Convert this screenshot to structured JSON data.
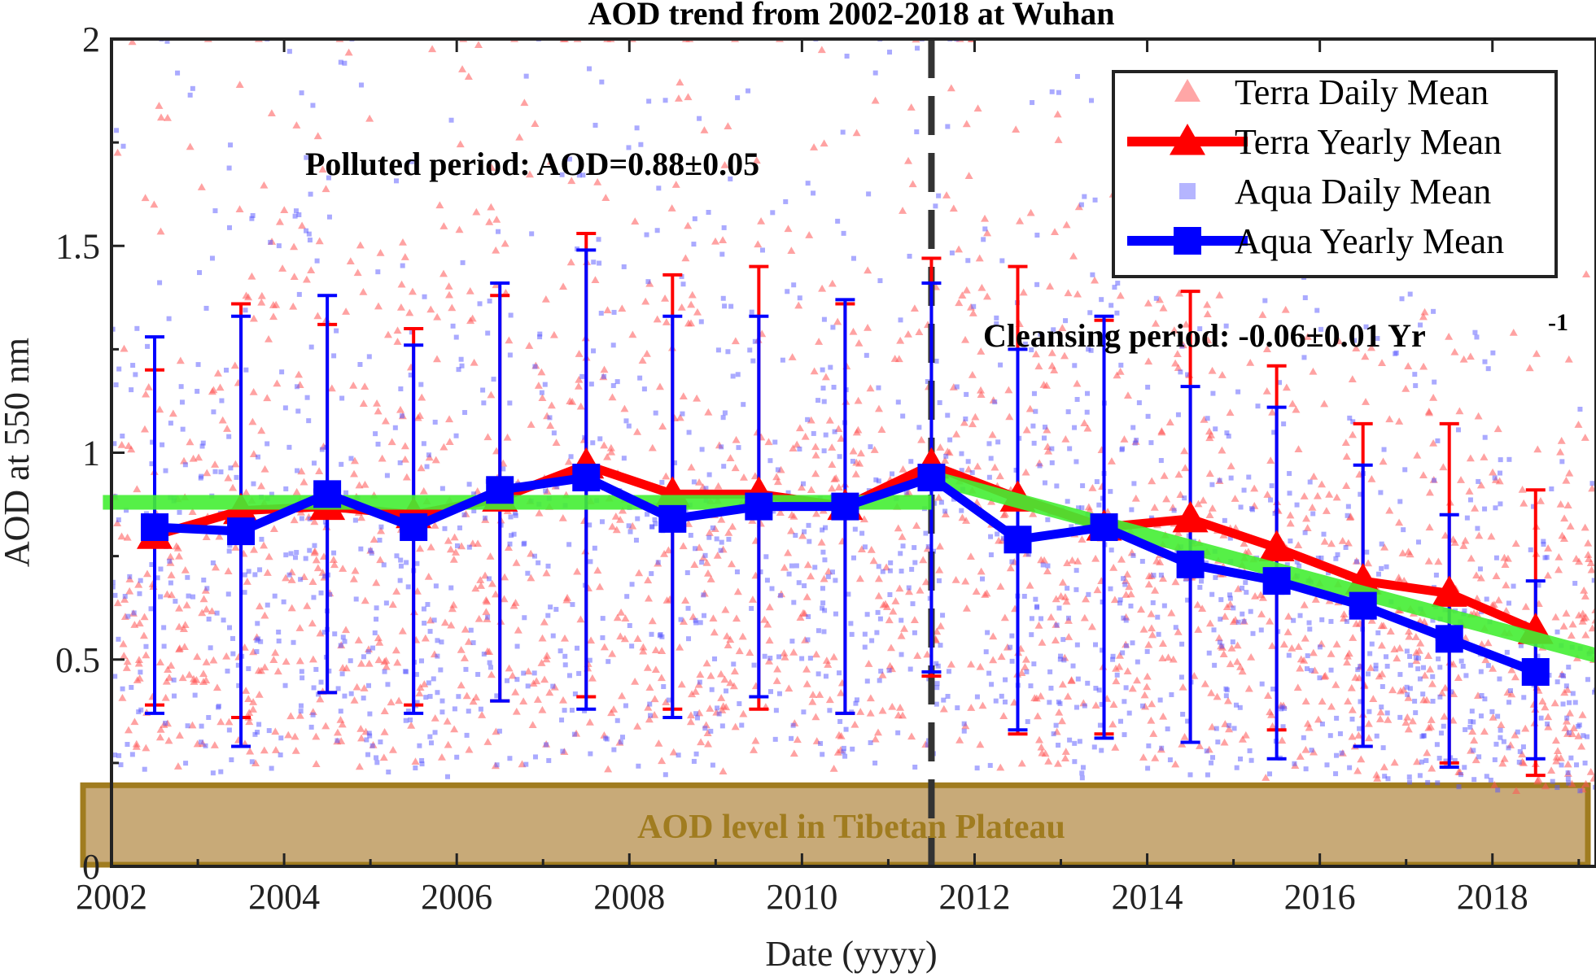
{
  "chart_data": {
    "type": "line",
    "title": "AOD trend from 2002-2018 at Wuhan",
    "xlabel": "Date (yyyy)",
    "ylabel": "AOD at 550 nm",
    "xlim": [
      2002,
      2019.2
    ],
    "ylim": [
      0,
      2
    ],
    "xticks": [
      2002,
      2004,
      2006,
      2008,
      2010,
      2012,
      2014,
      2016,
      2018
    ],
    "xtick_labels": [
      "2002",
      "2004",
      "2006",
      "2008",
      "2010",
      "2012",
      "2014",
      "2016",
      "2018"
    ],
    "yticks": [
      0,
      0.5,
      1,
      1.5,
      2
    ],
    "ytick_labels": [
      "0",
      "0.5",
      "1",
      "1.5",
      "2"
    ],
    "grid": false,
    "legend_position": "top-right",
    "legend": [
      {
        "label": "Terra Daily Mean",
        "color": "#ff4d4d",
        "marker": "triangle",
        "style": "points"
      },
      {
        "label": "Terra Yearly Mean",
        "color": "#ff0000",
        "marker": "triangle",
        "style": "line"
      },
      {
        "label": "Aqua Daily Mean",
        "color": "#5a5aff",
        "marker": "square",
        "style": "points"
      },
      {
        "label": "Aqua Yearly Mean",
        "color": "#0000ff",
        "marker": "square",
        "style": "line"
      }
    ],
    "series": [
      {
        "name": "Terra Yearly Mean",
        "color": "#ff0000",
        "marker": "triangle",
        "x": [
          2002.5,
          2003.5,
          2004.5,
          2005.5,
          2006.5,
          2007.5,
          2008.5,
          2009.5,
          2010.5,
          2011.5,
          2012.5,
          2013.5,
          2014.5,
          2015.5,
          2016.5,
          2017.5,
          2018.5
        ],
        "values": [
          0.8,
          0.86,
          0.87,
          0.85,
          0.89,
          0.97,
          0.9,
          0.9,
          0.87,
          0.97,
          0.89,
          0.82,
          0.84,
          0.77,
          0.69,
          0.66,
          0.57
        ],
        "err_upper": [
          1.2,
          1.36,
          1.31,
          1.3,
          1.38,
          1.53,
          1.43,
          1.45,
          1.36,
          1.47,
          1.45,
          1.32,
          1.39,
          1.21,
          1.07,
          1.07,
          0.91
        ],
        "err_lower": [
          0.39,
          0.36,
          0.42,
          0.39,
          0.4,
          0.41,
          0.38,
          0.38,
          0.37,
          0.46,
          0.32,
          0.32,
          0.3,
          0.33,
          0.29,
          0.25,
          0.22
        ]
      },
      {
        "name": "Aqua Yearly Mean",
        "color": "#0000ff",
        "marker": "square",
        "x": [
          2002.5,
          2003.5,
          2004.5,
          2005.5,
          2006.5,
          2007.5,
          2008.5,
          2009.5,
          2010.5,
          2011.5,
          2012.5,
          2013.5,
          2014.5,
          2015.5,
          2016.5,
          2017.5,
          2018.5
        ],
        "values": [
          0.82,
          0.81,
          0.9,
          0.82,
          0.91,
          0.94,
          0.84,
          0.87,
          0.87,
          0.94,
          0.79,
          0.82,
          0.73,
          0.69,
          0.63,
          0.55,
          0.47
        ],
        "err_upper": [
          1.28,
          1.33,
          1.38,
          1.26,
          1.41,
          1.49,
          1.33,
          1.33,
          1.37,
          1.41,
          1.25,
          1.33,
          1.16,
          1.11,
          0.97,
          0.85,
          0.69
        ],
        "err_lower": [
          0.37,
          0.29,
          0.42,
          0.37,
          0.4,
          0.38,
          0.36,
          0.41,
          0.37,
          0.47,
          0.33,
          0.31,
          0.3,
          0.26,
          0.29,
          0.24,
          0.26
        ]
      }
    ],
    "daily_scatter": {
      "description_only": false,
      "x_range": [
        2002,
        2019.2
      ],
      "y_range": [
        0.05,
        2.0
      ],
      "terra_count": 1800,
      "aqua_count": 1500
    },
    "trend_lines": [
      {
        "name": "Polluted period fit",
        "color": "#44ee33",
        "x": [
          2001.9,
          2011.5
        ],
        "values": [
          0.88,
          0.88
        ]
      },
      {
        "name": "Cleansing period fit",
        "color": "#44ee33",
        "x": [
          2011.5,
          2019.2
        ],
        "values": [
          0.94,
          0.51
        ]
      }
    ],
    "divider_x": 2011.5,
    "band": {
      "label": "AOD level in Tibetan Plateau",
      "range": [
        0,
        0.2
      ],
      "fill": "#c8aa78",
      "border": "#a07c20",
      "text_color": "#a07c20"
    },
    "annotations": {
      "polluted": "Polluted period: AOD=0.88±0.05",
      "cleansing": "Cleansing period: -0.06±0.01 Yr",
      "cleansing_sup": "-1"
    }
  }
}
